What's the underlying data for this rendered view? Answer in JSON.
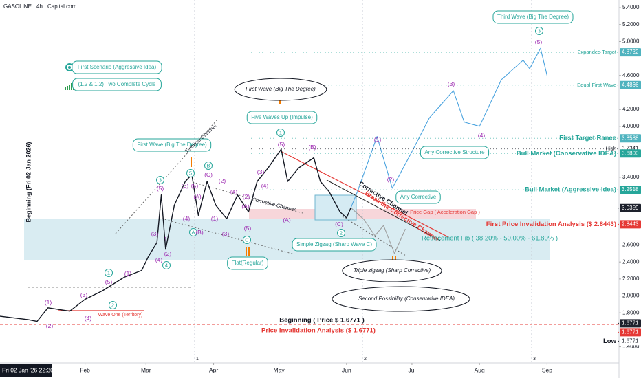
{
  "chart_data": {
    "type": "line",
    "title": "GASOLINE · 4h · Capital.com",
    "cursor_label": "Fri 02 Jan '26  22:30",
    "xlim": [
      "2025-12-24",
      "2026-10-04"
    ],
    "xticks": [
      {
        "value": "2026-02-01",
        "label": "Feb"
      },
      {
        "value": "2026-03-01",
        "label": "Mar"
      },
      {
        "value": "2026-04-01",
        "label": "Apr"
      },
      {
        "value": "2026-05-01",
        "label": "May"
      },
      {
        "value": "2026-06-01",
        "label": "Jun"
      },
      {
        "value": "2026-07-01",
        "label": "Jul"
      },
      {
        "value": "2026-08-01",
        "label": "Aug"
      },
      {
        "value": "2026-09-01",
        "label": "Sep"
      }
    ],
    "ylim": [
      1.21,
      5.49
    ],
    "yticks": [
      {
        "value": 1.4,
        "label": "1.4000"
      },
      {
        "value": 1.8,
        "label": "1.8000"
      },
      {
        "value": 2.0,
        "label": "2.0000"
      },
      {
        "value": 2.2,
        "label": "2.2000"
      },
      {
        "value": 2.4,
        "label": "2.4000"
      },
      {
        "value": 2.6,
        "label": "2.6000"
      },
      {
        "value": 3.4,
        "label": "3.4000"
      },
      {
        "value": 4.0,
        "label": "4.0000"
      },
      {
        "value": 4.2,
        "label": "4.2000"
      },
      {
        "value": 4.6,
        "label": "4.6000"
      },
      {
        "value": 5.0,
        "label": "5.0000"
      },
      {
        "value": 5.2,
        "label": "5.2000"
      },
      {
        "value": 5.4,
        "label": "5.4000"
      }
    ],
    "series": [
      {
        "color": "#131722",
        "x": [
          "2025-12-24",
          "2026-01-06",
          "2026-01-10",
          "2026-01-15",
          "2026-01-25",
          "2026-02-01",
          "2026-02-09",
          "2026-02-19",
          "2026-02-27",
          "2026-03-02",
          "2026-03-06",
          "2026-03-08",
          "2026-03-10",
          "2026-03-14",
          "2026-03-19",
          "2026-03-22",
          "2026-03-25",
          "2026-03-29",
          "2026-04-02",
          "2026-04-07",
          "2026-04-12",
          "2026-04-17",
          "2026-04-21",
          "2026-04-26",
          "2026-05-02",
          "2026-05-05",
          "2026-05-10",
          "2026-05-17",
          "2026-05-20",
          "2026-05-24",
          "2026-05-29",
          "2026-06-01",
          "2026-06-03"
        ],
        "values": [
          1.76,
          1.72,
          1.7,
          1.86,
          1.82,
          1.96,
          2.06,
          2.22,
          2.3,
          2.46,
          2.63,
          3.19,
          2.55,
          3.07,
          3.35,
          3.43,
          2.95,
          3.35,
          3.07,
          2.91,
          3.19,
          2.99,
          3.35,
          3.51,
          3.73,
          3.35,
          3.51,
          3.63,
          3.35,
          3.23,
          2.99,
          2.92,
          3.04
        ]
      },
      {
        "color": "#4aa3df",
        "x": [
          "2026-06-03",
          "2026-06-06",
          "2026-06-15",
          "2026-06-22",
          "2026-07-01",
          "2026-07-09",
          "2026-07-20",
          "2026-07-25",
          "2026-08-01",
          "2026-08-11",
          "2026-08-21",
          "2026-08-24",
          "2026-08-29",
          "2026-09-01"
        ],
        "values": [
          3.04,
          3.23,
          3.88,
          3.27,
          3.7,
          4.1,
          4.42,
          4.05,
          4.0,
          4.55,
          4.78,
          4.68,
          4.92,
          4.6
        ]
      },
      {
        "color": "#9e9e9e",
        "x": [
          "2026-06-03",
          "2026-06-09",
          "2026-06-14",
          "2026-06-18",
          "2026-06-23",
          "2026-06-28"
        ],
        "values": [
          3.04,
          2.9,
          2.71,
          2.83,
          2.5,
          2.79
        ]
      }
    ],
    "levels": [
      {
        "name": "Expanded Target",
        "value": 4.8732,
        "label": "4.8732"
      },
      {
        "name": "Equal First Wave",
        "value": 4.4866,
        "label": "4.4866"
      },
      {
        "name": "First Target Ranee",
        "value": 3.8588,
        "label": "3.8588"
      },
      {
        "name": "High",
        "value": 3.7341,
        "label": "3.7341"
      },
      {
        "name": "Bull Market (Conservative IDEA)",
        "value": 3.68,
        "label": "3.6800"
      },
      {
        "name": "Bull Market (Aggressive Idea)",
        "value": 3.2518,
        "label": "3.2518"
      },
      {
        "value": 3.0359,
        "label": "3.0359"
      },
      {
        "name": "First Price Invalidation Analysis ($ 2.8443)",
        "value": 2.8443,
        "label": "2.8443"
      },
      {
        "value": 1.6771,
        "label": "1.6771"
      },
      {
        "value": 1.6771,
        "label": "1.6771"
      },
      {
        "name": "Low",
        "value": 1.6771,
        "label": "1.6771"
      }
    ],
    "annotations": [
      "Beginning (Fri 02 Jan 2026)",
      "First Scenario (Aggressive Idea)",
      "(1.2 & 1.2) Two Complete Cycle",
      "First Wave (Big The Degree)",
      "Terminal Channel",
      "Corrective Channel",
      "Five Waves Up (Impulse)",
      "First Wave (Big The Degree)",
      "Flat(Regular)",
      "Any Corrective Structure",
      "Any Corrective",
      "Corrective Channel",
      "Break the Corrective Channel",
      "Price Gap ( Acceleration Gap )",
      "Simple Zigzag (Sharp Wave C)",
      "Retracement Fib ( 38.20% - 50.00% - 61.80% )",
      "Triple zigzag (Sharp Corrective)",
      "Second Possibility (Conservative IDEA)",
      "Beginning ( Price $ 1.6771 )",
      "Price Invalidation Analysis ($ 1.6771)",
      "Wave One (Territory)",
      "Third Wave (Big The Degree)"
    ],
    "wave_labels": [
      "(1)",
      "(2)",
      "(3)",
      "(4)",
      "(5)",
      "1",
      "2",
      "(1)",
      "3",
      "(5)",
      "(3)",
      "(4)",
      "(2)",
      "4",
      "1",
      "5",
      "(3)",
      "(5)",
      "(A)",
      "(4)",
      "B",
      "(C)",
      "(2)",
      "(1)",
      "A",
      "(B)",
      "(3)",
      "(4)",
      "(2)",
      "(A)",
      "(5)",
      "C",
      "(3)",
      "(4)",
      "1",
      "(5)",
      "(B)",
      "(A)",
      "(C)",
      "2",
      "(1)",
      "(2)",
      "(3)",
      "(4)",
      "(5)",
      "3"
    ],
    "session_markers": [
      "1",
      "2",
      "3"
    ]
  }
}
